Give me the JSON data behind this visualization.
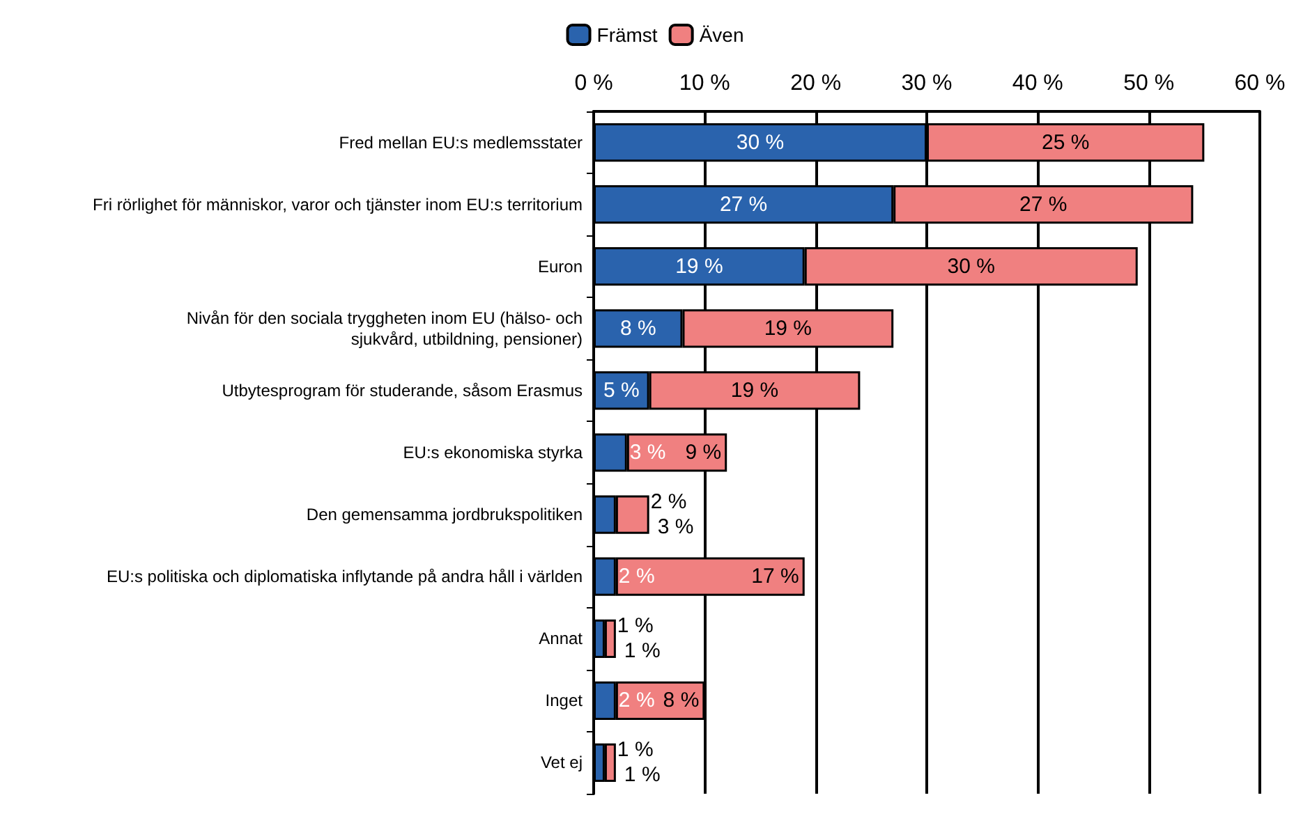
{
  "chart_data": {
    "type": "bar",
    "orientation": "horizontal",
    "stacked": true,
    "legend": "top",
    "grid": "x",
    "categories": [
      "Fred mellan EU:s medlemsstater",
      "Fri rörlighet för människor, varor och tjänster inom EU:s territorium",
      "Euron",
      "Nivån för den sociala tryggheten inom EU (hälso- och\nsjukvård, utbildning, pensioner)",
      "Utbytesprogram för studerande, såsom Erasmus",
      "EU:s ekonomiska styrka",
      "Den gemensamma jordbrukspolitiken",
      "EU:s politiska och diplomatiska inflytande på andra håll i världen",
      "Annat",
      "Inget",
      "Vet ej"
    ],
    "xlim": [
      0,
      60
    ],
    "xticks": [
      {
        "value": 0,
        "label": "0 %"
      },
      {
        "value": 10,
        "label": "10 %"
      },
      {
        "value": 20,
        "label": "20 %"
      },
      {
        "value": 30,
        "label": "30 %"
      },
      {
        "value": 40,
        "label": "40 %"
      },
      {
        "value": 50,
        "label": "50 %"
      },
      {
        "value": 60,
        "label": "60 %"
      }
    ],
    "series": [
      {
        "name": "Främst",
        "color": "#2a63ad",
        "values": [
          30,
          27,
          19,
          8,
          5,
          3,
          2,
          2,
          1,
          2,
          1
        ],
        "value_labels": [
          "30 %",
          "27 %",
          "19 %",
          "8 %",
          "5 %",
          "3 %",
          "2 %",
          "2 %",
          "1 %",
          "2 %",
          "1 %"
        ]
      },
      {
        "name": "Även",
        "color": "#f08080",
        "values": [
          25,
          27,
          30,
          19,
          19,
          9,
          3,
          17,
          1,
          8,
          1
        ],
        "value_labels": [
          "25 %",
          "27 %",
          "30 %",
          "19 %",
          "19 %",
          "9 %",
          "3 %",
          "17 %",
          "1 %",
          "8 %",
          "1 %"
        ]
      }
    ]
  }
}
